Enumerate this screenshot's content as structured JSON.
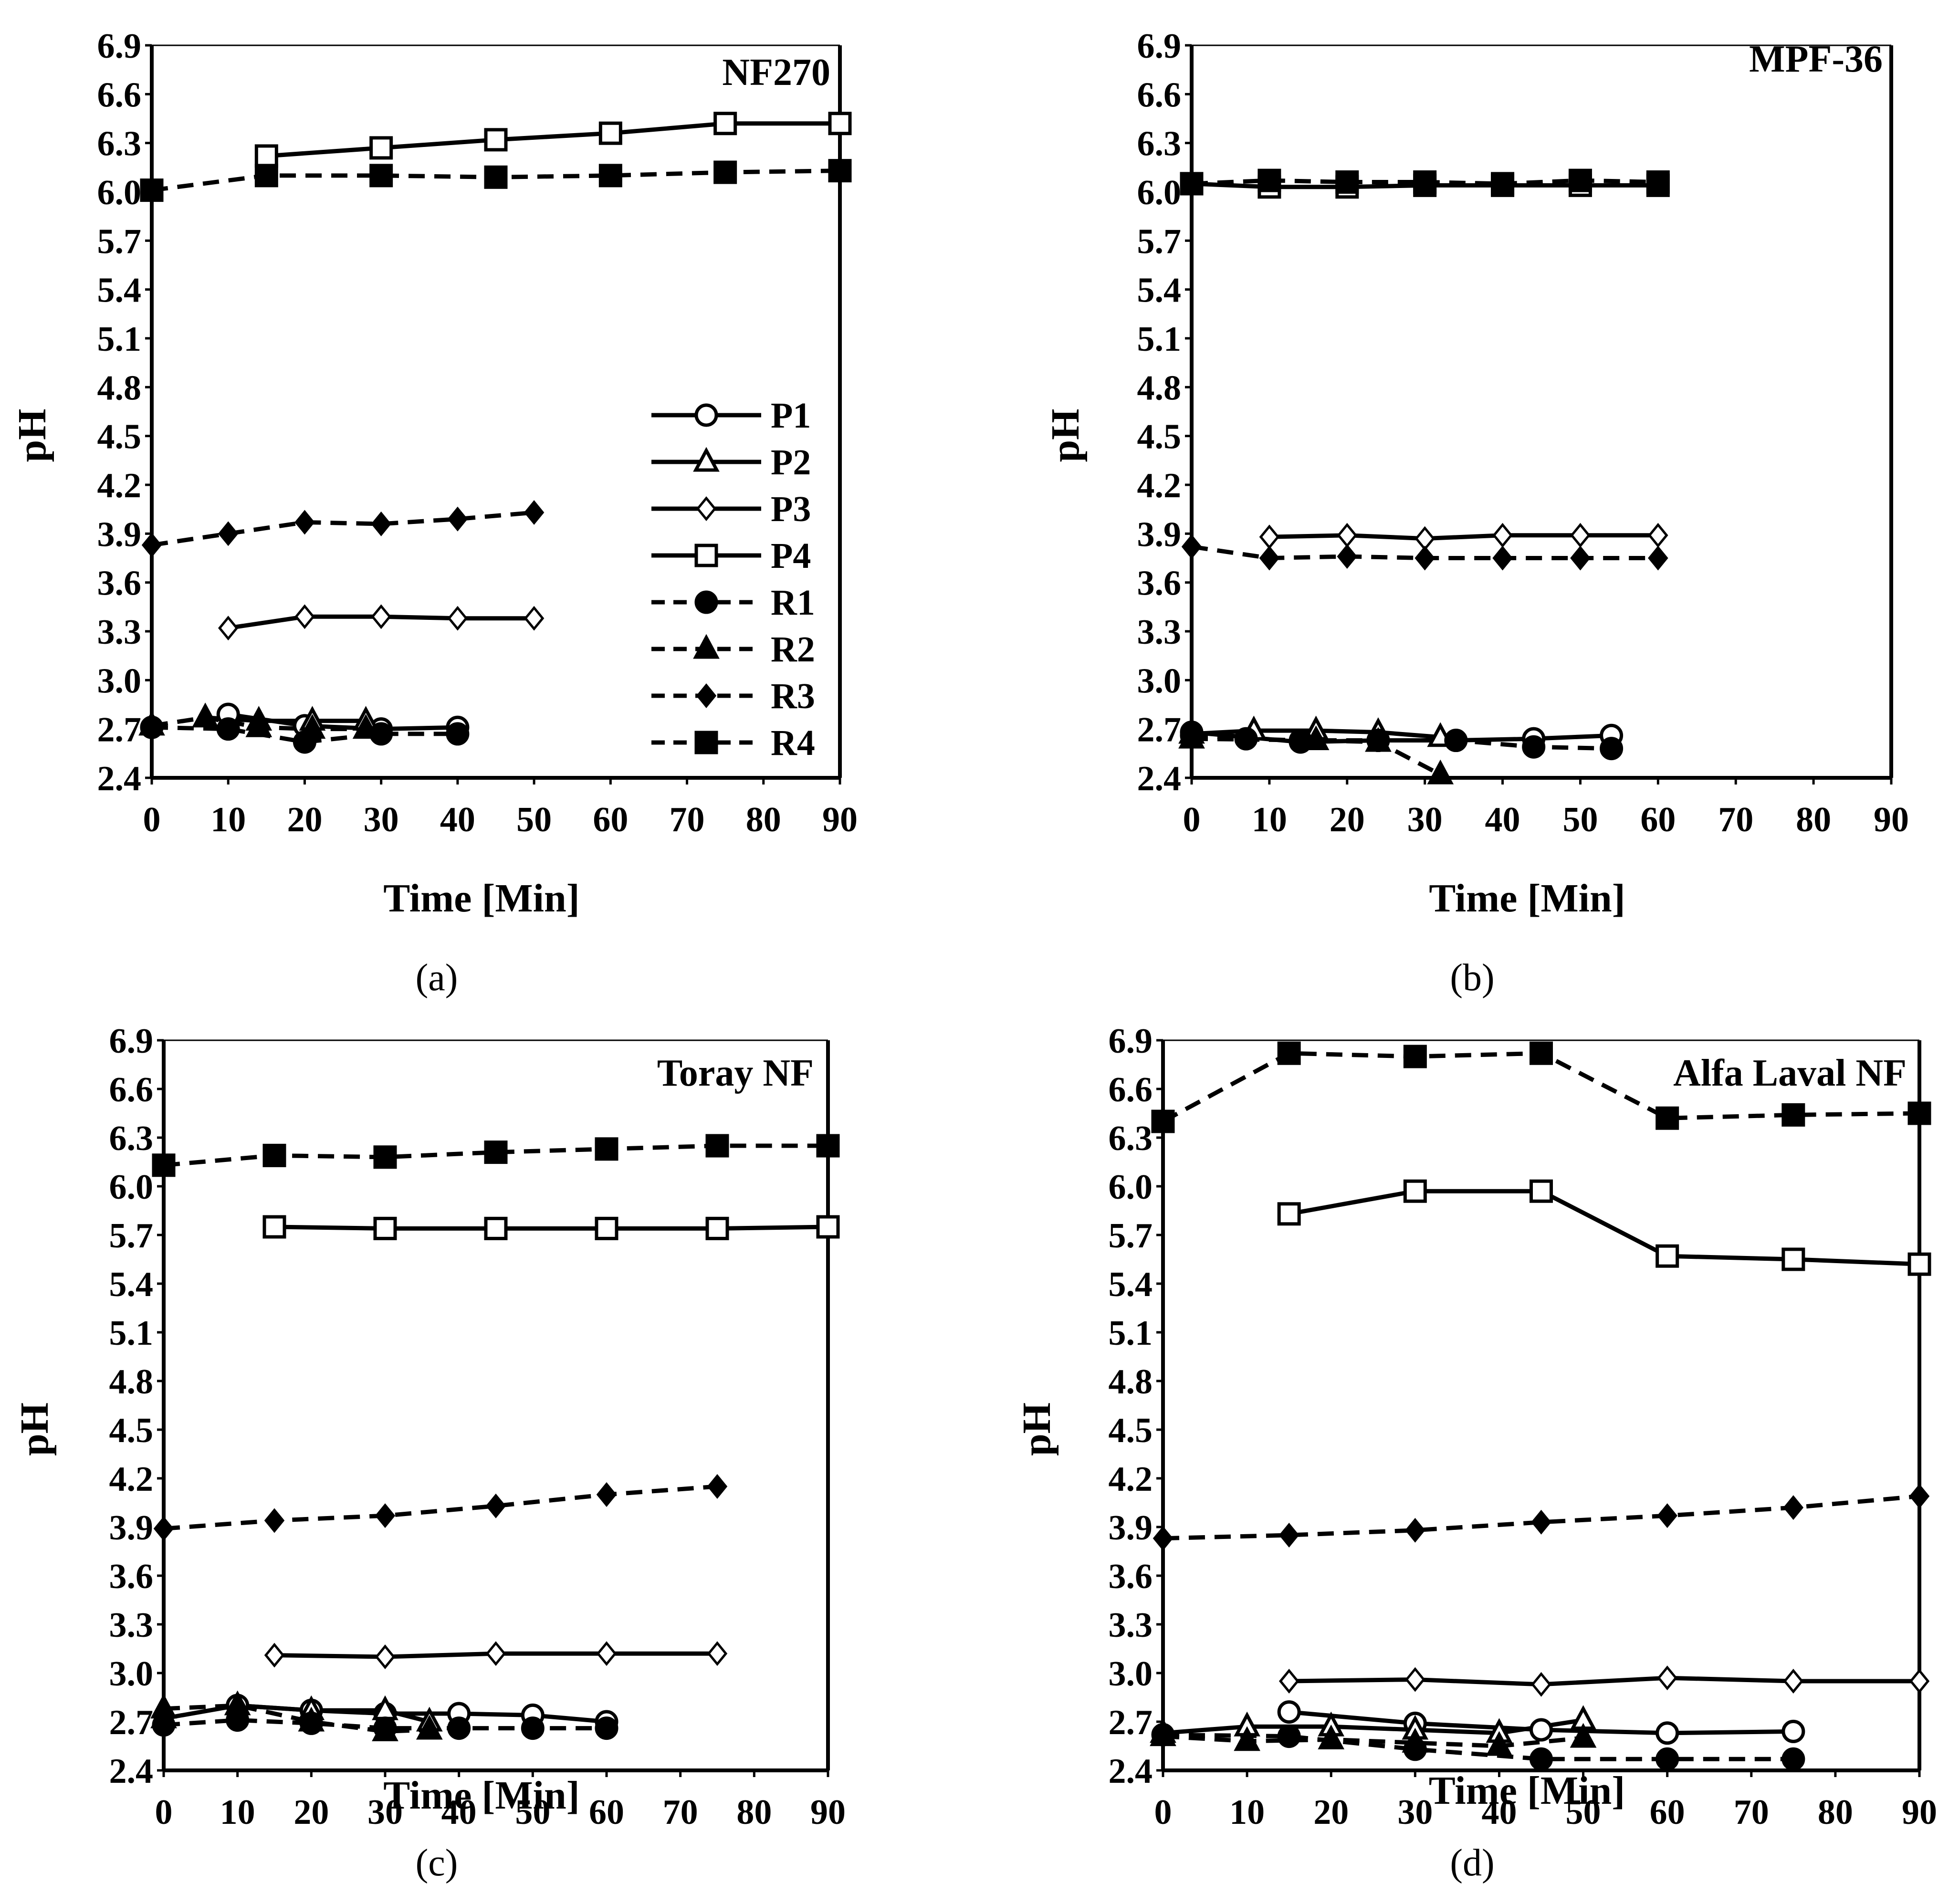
{
  "chart_data": [
    {
      "type": "line",
      "title": "NF270",
      "caption": "(a)",
      "xlabel": "Time [Min]",
      "ylabel": "pH",
      "xlim": [
        0,
        90
      ],
      "ylim": [
        2.4,
        6.9
      ],
      "xticks": [
        "0",
        "10",
        "20",
        "30",
        "40",
        "50",
        "60",
        "70",
        "80",
        "90"
      ],
      "yticks": [
        "2.4",
        "2.7",
        "3.0",
        "3.3",
        "3.6",
        "3.9",
        "4.2",
        "4.5",
        "4.8",
        "5.1",
        "5.4",
        "5.7",
        "6.0",
        "6.3",
        "6.6",
        "6.9"
      ],
      "legend_position": "right",
      "series": [
        {
          "name": "P1",
          "x": [
            10,
            20,
            30,
            40
          ],
          "y": [
            2.79,
            2.72,
            2.7,
            2.71
          ]
        },
        {
          "name": "P2",
          "x": [
            7,
            14,
            21,
            28
          ],
          "y": [
            2.77,
            2.75,
            2.75,
            2.75
          ]
        },
        {
          "name": "P3",
          "x": [
            10,
            20,
            30,
            40,
            50
          ],
          "y": [
            3.32,
            3.39,
            3.39,
            3.38,
            3.38
          ]
        },
        {
          "name": "P4",
          "x": [
            15,
            30,
            45,
            60,
            75,
            90
          ],
          "y": [
            6.22,
            6.27,
            6.32,
            6.36,
            6.42,
            6.42
          ]
        },
        {
          "name": "R1",
          "x": [
            0,
            10,
            20,
            30,
            40
          ],
          "y": [
            2.71,
            2.7,
            2.62,
            2.67,
            2.67
          ]
        },
        {
          "name": "R2",
          "x": [
            0,
            7,
            14,
            21,
            28
          ],
          "y": [
            2.72,
            2.77,
            2.71,
            2.7,
            2.7
          ]
        },
        {
          "name": "R3",
          "x": [
            0,
            10,
            20,
            30,
            40,
            50
          ],
          "y": [
            3.83,
            3.9,
            3.97,
            3.96,
            3.99,
            4.03
          ]
        },
        {
          "name": "R4",
          "x": [
            0,
            15,
            30,
            45,
            60,
            75,
            90
          ],
          "y": [
            6.01,
            6.1,
            6.1,
            6.09,
            6.1,
            6.12,
            6.13
          ]
        }
      ]
    },
    {
      "type": "line",
      "title": "MPF-36",
      "caption": "(b)",
      "xlabel": "Time [Min]",
      "ylabel": "pH",
      "xlim": [
        0,
        90
      ],
      "ylim": [
        2.4,
        6.9
      ],
      "xticks": [
        "0",
        "10",
        "20",
        "30",
        "40",
        "50",
        "60",
        "70",
        "80",
        "90"
      ],
      "yticks": [
        "2.4",
        "2.7",
        "3.0",
        "3.3",
        "3.6",
        "3.9",
        "4.2",
        "4.5",
        "4.8",
        "5.1",
        "5.4",
        "5.7",
        "6.0",
        "6.3",
        "6.6",
        "6.9"
      ],
      "series": [
        {
          "name": "P1",
          "x": [
            0,
            14,
            24,
            34,
            44,
            54
          ],
          "y": [
            2.68,
            2.62,
            2.63,
            2.63,
            2.64,
            2.66
          ]
        },
        {
          "name": "P2",
          "x": [
            0,
            8,
            16,
            24,
            32
          ],
          "y": [
            2.67,
            2.69,
            2.69,
            2.68,
            2.65
          ]
        },
        {
          "name": "P3",
          "x": [
            10,
            20,
            30,
            40,
            50,
            60
          ],
          "y": [
            3.88,
            3.89,
            3.87,
            3.89,
            3.89,
            3.89
          ]
        },
        {
          "name": "P4",
          "x": [
            0,
            10,
            20,
            30,
            40,
            50,
            60
          ],
          "y": [
            6.05,
            6.03,
            6.03,
            6.04,
            6.04,
            6.04,
            6.04
          ]
        },
        {
          "name": "R1",
          "x": [
            0,
            7,
            14,
            24,
            34,
            44,
            54
          ],
          "y": [
            2.66,
            2.64,
            2.63,
            2.63,
            2.63,
            2.59,
            2.58
          ]
        },
        {
          "name": "R2",
          "x": [
            0,
            16,
            24,
            32
          ],
          "y": [
            2.64,
            2.63,
            2.62,
            2.42
          ]
        },
        {
          "name": "R3",
          "x": [
            0,
            10,
            20,
            30,
            40,
            50,
            60
          ],
          "y": [
            3.82,
            3.75,
            3.76,
            3.75,
            3.75,
            3.75,
            3.75
          ]
        },
        {
          "name": "R4",
          "x": [
            0,
            10,
            20,
            30,
            40,
            50,
            60
          ],
          "y": [
            6.05,
            6.07,
            6.06,
            6.06,
            6.05,
            6.07,
            6.06
          ]
        }
      ]
    },
    {
      "type": "line",
      "title": "Toray NF",
      "caption": "(c)",
      "xlabel": "Time [Min]",
      "ylabel": "pH",
      "xlim": [
        0,
        90
      ],
      "ylim": [
        2.4,
        6.9
      ],
      "xticks": [
        "0",
        "10",
        "20",
        "30",
        "40",
        "50",
        "60",
        "70",
        "80",
        "90"
      ],
      "yticks": [
        "2.4",
        "2.7",
        "3.0",
        "3.3",
        "3.6",
        "3.9",
        "4.2",
        "4.5",
        "4.8",
        "5.1",
        "5.4",
        "5.7",
        "6.0",
        "6.3",
        "6.6",
        "6.9"
      ],
      "series": [
        {
          "name": "P1",
          "x": [
            10,
            20,
            30,
            40,
            50,
            60
          ],
          "y": [
            2.8,
            2.77,
            2.75,
            2.75,
            2.74,
            2.7
          ]
        },
        {
          "name": "P2",
          "x": [
            0,
            10,
            20,
            30,
            36
          ],
          "y": [
            2.72,
            2.8,
            2.77,
            2.77,
            2.7
          ]
        },
        {
          "name": "P3",
          "x": [
            15,
            30,
            45,
            60,
            75
          ],
          "y": [
            3.11,
            3.1,
            3.12,
            3.12,
            3.12
          ]
        },
        {
          "name": "P4",
          "x": [
            15,
            30,
            45,
            60,
            75,
            90
          ],
          "y": [
            5.75,
            5.74,
            5.74,
            5.74,
            5.74,
            5.75
          ]
        },
        {
          "name": "R1",
          "x": [
            0,
            10,
            20,
            30,
            40,
            50,
            60
          ],
          "y": [
            2.68,
            2.71,
            2.69,
            2.66,
            2.66,
            2.66,
            2.66
          ]
        },
        {
          "name": "R2",
          "x": [
            0,
            10,
            20,
            30,
            36
          ],
          "y": [
            2.78,
            2.8,
            2.7,
            2.64,
            2.65
          ]
        },
        {
          "name": "R3",
          "x": [
            0,
            15,
            30,
            45,
            60,
            75
          ],
          "y": [
            3.89,
            3.94,
            3.97,
            4.03,
            4.1,
            4.15
          ]
        },
        {
          "name": "R4",
          "x": [
            0,
            15,
            30,
            45,
            60,
            75,
            90
          ],
          "y": [
            6.13,
            6.19,
            6.18,
            6.21,
            6.23,
            6.25,
            6.25
          ]
        }
      ]
    },
    {
      "type": "line",
      "title": "Alfa Laval NF",
      "caption": "(d)",
      "xlabel": "Time [Min]",
      "ylabel": "pH",
      "xlim": [
        0,
        90
      ],
      "ylim": [
        2.4,
        6.9
      ],
      "xticks": [
        "0",
        "10",
        "20",
        "30",
        "40",
        "50",
        "60",
        "70",
        "80",
        "90"
      ],
      "yticks": [
        "2.4",
        "2.7",
        "3.0",
        "3.3",
        "3.6",
        "3.9",
        "4.2",
        "4.5",
        "4.8",
        "5.1",
        "5.4",
        "5.7",
        "6.0",
        "6.3",
        "6.6",
        "6.9"
      ],
      "series": [
        {
          "name": "P1",
          "x": [
            15,
            30,
            45,
            60,
            75
          ],
          "y": [
            2.76,
            2.69,
            2.65,
            2.63,
            2.64
          ]
        },
        {
          "name": "P2",
          "x": [
            0,
            10,
            20,
            30,
            40,
            50
          ],
          "y": [
            2.63,
            2.67,
            2.67,
            2.65,
            2.63,
            2.71
          ]
        },
        {
          "name": "P3",
          "x": [
            15,
            30,
            45,
            60,
            75,
            90
          ],
          "y": [
            2.95,
            2.96,
            2.93,
            2.97,
            2.95,
            2.95
          ]
        },
        {
          "name": "P4",
          "x": [
            15,
            30,
            45,
            60,
            75,
            90
          ],
          "y": [
            5.83,
            5.97,
            5.97,
            5.57,
            5.55,
            5.52
          ]
        },
        {
          "name": "R1",
          "x": [
            0,
            15,
            30,
            45,
            60,
            75
          ],
          "y": [
            2.62,
            2.61,
            2.53,
            2.47,
            2.47,
            2.47
          ]
        },
        {
          "name": "R2",
          "x": [
            0,
            10,
            20,
            30,
            40,
            50
          ],
          "y": [
            2.61,
            2.58,
            2.59,
            2.57,
            2.55,
            2.6
          ]
        },
        {
          "name": "R3",
          "x": [
            0,
            15,
            30,
            45,
            60,
            75,
            90
          ],
          "y": [
            3.83,
            3.85,
            3.88,
            3.93,
            3.97,
            4.02,
            4.09
          ]
        },
        {
          "name": "R4",
          "x": [
            0,
            15,
            30,
            45,
            60,
            75,
            90
          ],
          "y": [
            6.4,
            6.82,
            6.8,
            6.82,
            6.42,
            6.44,
            6.45
          ]
        }
      ]
    }
  ]
}
